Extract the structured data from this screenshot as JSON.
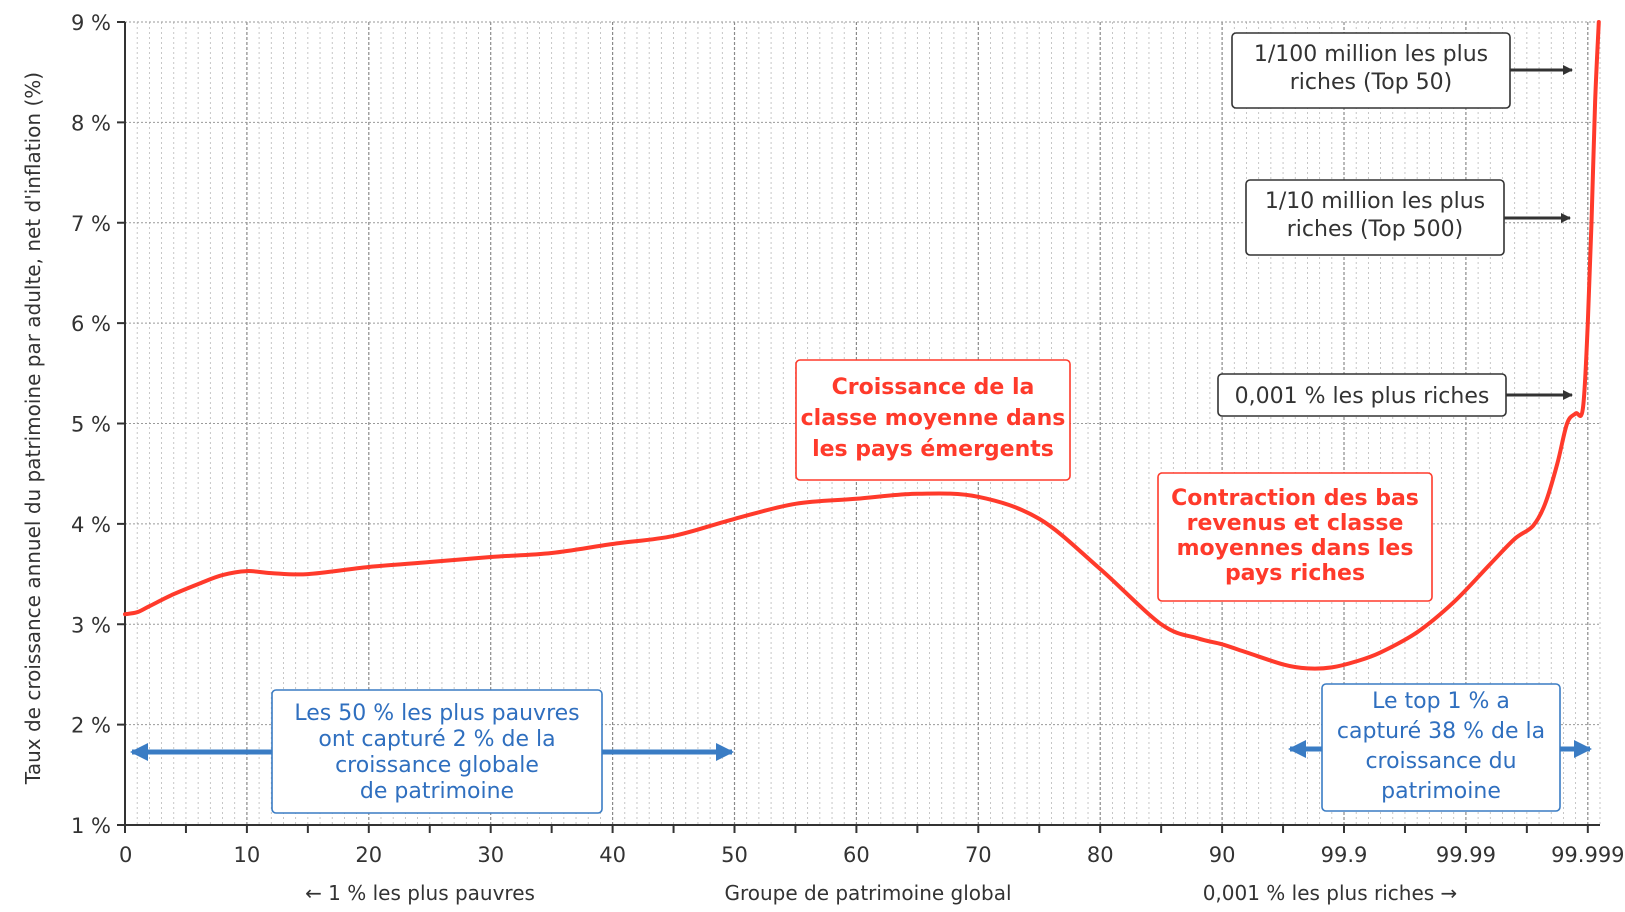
{
  "chart_data": {
    "type": "line",
    "ylabel": "Taux de croissance annuel du patrimoine par adulte, net d'inflation  (%)",
    "xlabel": "Groupe de patrimoine global",
    "xlabel_left": "← 1 % les plus pauvres",
    "xlabel_right": "0,001 % les plus riches →",
    "ylim": [
      1,
      9
    ],
    "grid": true,
    "y_ticks": [
      {
        "value": 1,
        "label": "1 %"
      },
      {
        "value": 2,
        "label": "2 %"
      },
      {
        "value": 3,
        "label": "3 %"
      },
      {
        "value": 4,
        "label": "4 %"
      },
      {
        "value": 5,
        "label": "5 %"
      },
      {
        "value": 6,
        "label": "6 %"
      },
      {
        "value": 7,
        "label": "7 %"
      },
      {
        "value": 8,
        "label": "8 %"
      },
      {
        "value": 9,
        "label": "9 %"
      }
    ],
    "x_tick_labels": [
      "0",
      "10",
      "20",
      "30",
      "40",
      "50",
      "60",
      "70",
      "80",
      "90",
      "99.9",
      "99.99",
      "99.999"
    ],
    "series": [
      {
        "color": "#ff3a2b",
        "points": [
          [
            0,
            3.1
          ],
          [
            1,
            3.12
          ],
          [
            2,
            3.18
          ],
          [
            4,
            3.3
          ],
          [
            6,
            3.4
          ],
          [
            8,
            3.49
          ],
          [
            10,
            3.53
          ],
          [
            12,
            3.51
          ],
          [
            15,
            3.5
          ],
          [
            20,
            3.57
          ],
          [
            25,
            3.62
          ],
          [
            30,
            3.67
          ],
          [
            35,
            3.71
          ],
          [
            40,
            3.8
          ],
          [
            45,
            3.88
          ],
          [
            50,
            4.05
          ],
          [
            55,
            4.2
          ],
          [
            60,
            4.25
          ],
          [
            65,
            4.3
          ],
          [
            70,
            4.27
          ],
          [
            75,
            4.05
          ],
          [
            80,
            3.55
          ],
          [
            85,
            3.0
          ],
          [
            88,
            2.86
          ],
          [
            90,
            2.8
          ],
          [
            92,
            2.72
          ],
          [
            95,
            2.6
          ],
          [
            97,
            2.56
          ],
          [
            99,
            2.57
          ],
          [
            101,
            2.63
          ],
          [
            103,
            2.72
          ],
          [
            106,
            2.92
          ],
          [
            109,
            3.22
          ],
          [
            112,
            3.6
          ],
          [
            114,
            3.85
          ],
          [
            115.5,
            3.98
          ],
          [
            116.5,
            4.2
          ],
          [
            117.5,
            4.6
          ],
          [
            118.3,
            5.0
          ],
          [
            119,
            5.1
          ],
          [
            119.6,
            5.15
          ],
          [
            120,
            6.0
          ],
          [
            120.3,
            7.0
          ],
          [
            120.6,
            8.2
          ],
          [
            120.9,
            9.0
          ]
        ]
      }
    ],
    "annotations": {
      "top50": [
        "1/100 million les plus",
        "riches (Top 50)"
      ],
      "top500": [
        "1/10 million les plus",
        "riches (Top 500)"
      ],
      "top001": [
        "0,001 % les plus riches"
      ],
      "emergents": [
        "Croissance de la",
        "classe moyenne dans",
        "les pays émergents"
      ],
      "contraction": [
        "Contraction des bas",
        "revenus et classe",
        "moyennes dans les",
        "pays riches"
      ],
      "poorest50": [
        "Les 50 % les plus pauvres",
        "ont capturé 2 % de la",
        "croissance globale",
        "de patrimoine"
      ],
      "top1": [
        "Le top 1 % a",
        "capturé 38 % de la",
        "croissance du",
        "patrimoine"
      ]
    }
  }
}
